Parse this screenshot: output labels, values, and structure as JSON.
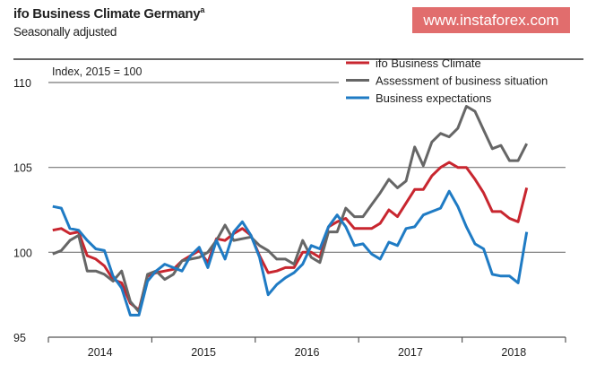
{
  "chart_data": {
    "type": "line",
    "title": "ifo Business Climate Germany",
    "title_footnote": "a",
    "subtitle": "Seasonally adjusted",
    "annotation": "Index, 2015 = 100",
    "x_start": "2014-01",
    "x_end": "2018-08",
    "x_frequency": "monthly",
    "x_tick_labels": [
      "2014",
      "2015",
      "2016",
      "2017",
      "2018"
    ],
    "ylim": [
      95,
      110
    ],
    "y_ticks": [
      95,
      100,
      105,
      110
    ],
    "grid": "horizontal at 100, 105, 110",
    "legend_position": "top-right",
    "series": [
      {
        "name": "ifo Business Climate",
        "color": "#c8262f",
        "values": [
          101.3,
          101.4,
          101.1,
          101.2,
          99.8,
          99.6,
          99.2,
          98.4,
          98.2,
          97.0,
          96.6,
          98.6,
          98.8,
          98.9,
          99.0,
          99.5,
          99.8,
          100.1,
          99.4,
          100.8,
          100.7,
          101.1,
          101.4,
          101.0,
          99.8,
          98.8,
          98.9,
          99.1,
          99.1,
          100.0,
          100.0,
          99.7,
          101.5,
          101.8,
          102.0,
          101.4,
          101.4,
          101.4,
          101.7,
          102.5,
          102.1,
          102.9,
          103.7,
          103.7,
          104.5,
          105.0,
          105.3,
          105.0,
          105.0,
          104.3,
          103.5,
          102.4,
          102.4,
          102.0,
          101.8,
          103.8
        ]
      },
      {
        "name": "Assessment of business situation",
        "color": "#666666",
        "values": [
          99.9,
          100.1,
          100.7,
          101.0,
          98.9,
          98.9,
          98.7,
          98.3,
          98.9,
          97.1,
          96.5,
          98.7,
          98.9,
          98.4,
          98.7,
          99.5,
          99.6,
          99.7,
          100.0,
          100.7,
          101.6,
          100.7,
          100.8,
          100.9,
          100.4,
          100.1,
          99.6,
          99.6,
          99.3,
          100.7,
          99.7,
          99.4,
          101.2,
          101.2,
          102.6,
          102.1,
          102.1,
          102.8,
          103.5,
          104.3,
          103.8,
          104.2,
          106.2,
          105.1,
          106.5,
          107.0,
          106.8,
          107.3,
          108.6,
          108.3,
          107.2,
          106.1,
          106.3,
          105.4,
          105.4,
          106.4
        ]
      },
      {
        "name": "Business expectations",
        "color": "#1f7bc4",
        "values": [
          102.7,
          102.6,
          101.4,
          101.3,
          100.7,
          100.2,
          100.1,
          98.6,
          97.9,
          96.3,
          96.3,
          98.3,
          98.9,
          99.3,
          99.1,
          98.9,
          99.8,
          100.3,
          99.1,
          100.7,
          99.6,
          101.2,
          101.8,
          101.0,
          99.7,
          97.5,
          98.1,
          98.5,
          98.8,
          99.3,
          100.4,
          100.2,
          101.5,
          102.2,
          101.5,
          100.4,
          100.5,
          99.9,
          99.6,
          100.6,
          100.4,
          101.4,
          101.5,
          102.2,
          102.4,
          102.6,
          103.6,
          102.7,
          101.5,
          100.5,
          100.2,
          98.7,
          98.6,
          98.6,
          98.2,
          101.2
        ]
      }
    ]
  },
  "watermark": "www.instaforex.com"
}
